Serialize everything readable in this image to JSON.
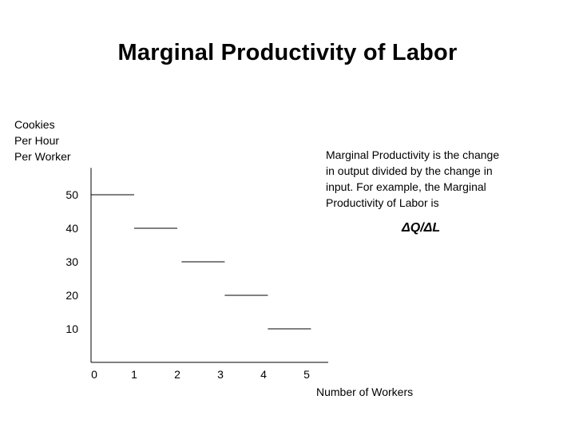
{
  "chart_data": {
    "type": "line",
    "title": "Marginal Productivity of Labor",
    "ylabel_lines": [
      "Cookies",
      "Per Hour",
      "Per Worker"
    ],
    "xlabel": "Number of Workers",
    "xticks": [
      "0",
      "1",
      "2",
      "3",
      "4",
      "5"
    ],
    "yticks": [
      "10",
      "20",
      "30",
      "40",
      "50"
    ],
    "xlim": [
      0,
      5.5
    ],
    "ylim": [
      0,
      58
    ],
    "series": [
      {
        "segments": [
          {
            "x0": 0,
            "x1": 1,
            "y": 50
          },
          {
            "x0": 1,
            "x1": 2,
            "y": 40
          },
          {
            "x0": 2.1,
            "x1": 3.1,
            "y": 30
          },
          {
            "x0": 3.1,
            "x1": 4.1,
            "y": 20
          },
          {
            "x0": 4.1,
            "x1": 5.1,
            "y": 10
          }
        ]
      }
    ],
    "annotation_lines": [
      "Marginal Productivity is the change",
      "in output divided by the change in",
      "input.  For example, the Marginal",
      "Productivity of Labor is"
    ],
    "formula": "ΔQ/ΔL"
  }
}
